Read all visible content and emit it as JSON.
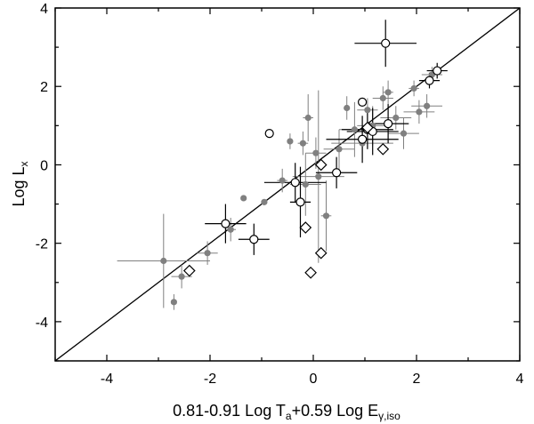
{
  "chart_data": {
    "type": "scatter",
    "title": "",
    "xlabel_parts": {
      "main1": "0.81-0.91 Log T",
      "sub1": "a",
      "main2": "+0.59 Log E",
      "sub2": "γ,iso"
    },
    "ylabel_parts": {
      "main": "Log L",
      "sub": "x"
    },
    "xlim": [
      -5,
      4
    ],
    "ylim": [
      -5,
      4
    ],
    "x_ticks": [
      -4,
      -2,
      0,
      2,
      4
    ],
    "y_ticks": [
      -4,
      -2,
      0,
      2,
      4
    ],
    "grid": false,
    "legend": "none",
    "colors": {
      "gray": "#808080",
      "black": "#000000"
    },
    "line": {
      "x": [
        -5,
        4
      ],
      "y": [
        -5,
        4
      ]
    },
    "series": [
      {
        "marker": "filled-circle",
        "color": "#808080",
        "points": [
          {
            "x": -2.9,
            "y": -2.45,
            "xerr": 0.9,
            "yerr": 1.2
          },
          {
            "x": -2.7,
            "y": -3.5,
            "xerr": 0,
            "yerr": 0.2
          },
          {
            "x": -2.55,
            "y": -2.85,
            "xerr": 0.2,
            "yerr": 0.3
          },
          {
            "x": -2.05,
            "y": -2.25,
            "xerr": 0.2,
            "yerr": 0.3
          },
          {
            "x": -1.6,
            "y": -1.65,
            "xerr": 0.1,
            "yerr": 0.3
          },
          {
            "x": -1.35,
            "y": -0.85,
            "xerr": 0,
            "yerr": 0
          },
          {
            "x": -0.95,
            "y": -0.95,
            "xerr": 0,
            "yerr": 0
          },
          {
            "x": -0.6,
            "y": -0.4,
            "xerr": 0.1,
            "yerr": 0.3
          },
          {
            "x": -0.45,
            "y": 0.6,
            "xerr": 0,
            "yerr": 0.2
          },
          {
            "x": -0.2,
            "y": 0.55,
            "xerr": 0.1,
            "yerr": 0.3
          },
          {
            "x": -0.15,
            "y": -0.5,
            "xerr": 0.3,
            "yerr": 0.8
          },
          {
            "x": -0.1,
            "y": 1.2,
            "xerr": 0.1,
            "yerr": 0.6
          },
          {
            "x": 0.05,
            "y": 0.3,
            "xerr": 0.2,
            "yerr": 0.4
          },
          {
            "x": 0.1,
            "y": -0.3,
            "xerr": 0.5,
            "yerr": 2.2
          },
          {
            "x": 0.25,
            "y": -1.3,
            "xerr": 0.1,
            "yerr": 0.9
          },
          {
            "x": 0.5,
            "y": 0.4,
            "xerr": 0.3,
            "yerr": 0.5
          },
          {
            "x": 0.65,
            "y": 1.45,
            "xerr": 0,
            "yerr": 0.3
          },
          {
            "x": 0.8,
            "y": 0.9,
            "xerr": 0.3,
            "yerr": 0.7
          },
          {
            "x": 0.95,
            "y": 0.55,
            "xerr": 0.6,
            "yerr": 0.4
          },
          {
            "x": 1.05,
            "y": 1.4,
            "xerr": 0.2,
            "yerr": 0.3
          },
          {
            "x": 1.15,
            "y": 1.0,
            "xerr": 0.3,
            "yerr": 0.5
          },
          {
            "x": 1.35,
            "y": 1.7,
            "xerr": 0.2,
            "yerr": 0.3
          },
          {
            "x": 1.45,
            "y": 1.85,
            "xerr": 0.1,
            "yerr": 0.3
          },
          {
            "x": 1.6,
            "y": 1.2,
            "xerr": 0.3,
            "yerr": 0.3
          },
          {
            "x": 1.75,
            "y": 0.8,
            "xerr": 0.3,
            "yerr": 0.4
          },
          {
            "x": 1.95,
            "y": 1.95,
            "xerr": 0.1,
            "yerr": 0.2
          },
          {
            "x": 2.05,
            "y": 1.35,
            "xerr": 0.3,
            "yerr": 0.3
          },
          {
            "x": 2.2,
            "y": 1.5,
            "xerr": 0.3,
            "yerr": 0.3
          },
          {
            "x": 2.3,
            "y": 2.3,
            "xerr": 0.2,
            "yerr": 0.2
          }
        ]
      },
      {
        "marker": "open-circle",
        "color": "#000000",
        "points": [
          {
            "x": -1.7,
            "y": -1.5,
            "xerr": 0.4,
            "yerr": 0.5
          },
          {
            "x": -1.15,
            "y": -1.9,
            "xerr": 0.3,
            "yerr": 0.4
          },
          {
            "x": -0.85,
            "y": 0.8,
            "xerr": 0,
            "yerr": 0
          },
          {
            "x": -0.35,
            "y": -0.45,
            "xerr": 0.6,
            "yerr": 0.5
          },
          {
            "x": -0.25,
            "y": -0.95,
            "xerr": 0.2,
            "yerr": 0.9
          },
          {
            "x": 0.45,
            "y": -0.2,
            "xerr": 0.4,
            "yerr": 0.4
          },
          {
            "x": 0.95,
            "y": 0.65,
            "xerr": 0.7,
            "yerr": 0.6
          },
          {
            "x": 0.95,
            "y": 1.6,
            "xerr": 0,
            "yerr": 0.1
          },
          {
            "x": 1.05,
            "y": 0.9,
            "xerr": 0.5,
            "yerr": 0.5
          },
          {
            "x": 1.15,
            "y": 0.85,
            "xerr": 0.5,
            "yerr": 0.6
          },
          {
            "x": 1.4,
            "y": 3.1,
            "xerr": 0.6,
            "yerr": 0.6
          },
          {
            "x": 1.45,
            "y": 1.05,
            "xerr": 0.4,
            "yerr": 0.5
          },
          {
            "x": 2.25,
            "y": 2.15,
            "xerr": 0.2,
            "yerr": 0.2
          },
          {
            "x": 2.4,
            "y": 2.4,
            "xerr": 0.2,
            "yerr": 0.2
          }
        ]
      },
      {
        "marker": "open-diamond",
        "color": "#000000",
        "points": [
          {
            "x": -2.4,
            "y": -2.7
          },
          {
            "x": -0.15,
            "y": -1.6
          },
          {
            "x": -0.05,
            "y": -2.75
          },
          {
            "x": 0.15,
            "y": 0.0
          },
          {
            "x": 0.15,
            "y": -2.25
          },
          {
            "x": 1.05,
            "y": 0.95
          },
          {
            "x": 1.35,
            "y": 0.4
          }
        ]
      }
    ]
  }
}
